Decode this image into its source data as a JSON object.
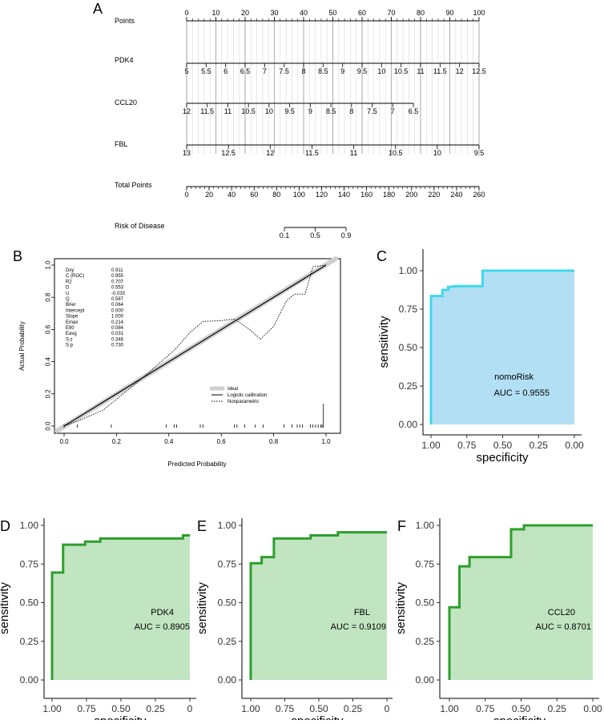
{
  "panels": {
    "nomogram": {
      "letter": "A",
      "rows": [
        {
          "label": "Points",
          "ticks": [
            "0",
            "10",
            "20",
            "30",
            "40",
            "50",
            "60",
            "70",
            "80",
            "90",
            "100"
          ]
        },
        {
          "label": "PDK4",
          "ticks": [
            "5",
            "5.5",
            "6",
            "6.5",
            "7",
            "7.5",
            "8",
            "8.5",
            "9",
            "9.5",
            "10",
            "10.5",
            "11",
            "11.5",
            "12",
            "12.5"
          ]
        },
        {
          "label": "CCL20",
          "ticks": [
            "12",
            "11.5",
            "11",
            "10.5",
            "10",
            "9.5",
            "9",
            "8.5",
            "8",
            "7.5",
            "7",
            "6.5"
          ]
        },
        {
          "label": "FBL",
          "ticks": [
            "13",
            "12.5",
            "12",
            "11.5",
            "11",
            "10.5",
            "10",
            "9.5"
          ]
        },
        {
          "label": "Total Points",
          "ticks": [
            "0",
            "20",
            "40",
            "60",
            "80",
            "100",
            "120",
            "140",
            "160",
            "180",
            "200",
            "220",
            "240",
            "260"
          ]
        },
        {
          "label": "Risk of Disease",
          "ticks": [
            "0.1",
            "0.5",
            "0.9"
          ]
        }
      ]
    },
    "calibration": {
      "letter": "B",
      "xlabel": "Predicted Probability",
      "ylabel": "Actual Probability",
      "xticks": [
        "0.0",
        "0.2",
        "0.4",
        "0.6",
        "0.8",
        "1.0"
      ],
      "yticks": [
        "0.0",
        "0.2",
        "0.4",
        "0.6",
        "0.8",
        "1.0"
      ],
      "stats": [
        {
          "name": "Dxy",
          "value": "0.911"
        },
        {
          "name": "C (ROC)",
          "value": "0.955"
        },
        {
          "name": "R2",
          "value": "0.707"
        },
        {
          "name": "D",
          "value": "0.553"
        },
        {
          "name": "U",
          "value": "-0.033"
        },
        {
          "name": "Q",
          "value": "0.587"
        },
        {
          "name": "Brier",
          "value": "0.064"
        },
        {
          "name": "Intercept",
          "value": "0.000"
        },
        {
          "name": "Slope",
          "value": "1.000"
        },
        {
          "name": "Emax",
          "value": "0.214"
        },
        {
          "name": "E90",
          "value": "0.084"
        },
        {
          "name": "Eavg",
          "value": "0.031"
        },
        {
          "name": "S:z",
          "value": "0.346"
        },
        {
          "name": "S:p",
          "value": "0.730"
        }
      ],
      "legend": [
        "Ideal",
        "Logistic calibration",
        "Nonparametric"
      ]
    },
    "roc_letters": [
      "C",
      "D",
      "E",
      "F"
    ]
  },
  "chart_data": [
    {
      "type": "line",
      "panel": "B",
      "xlim": [
        0,
        1
      ],
      "ylim": [
        0,
        1
      ],
      "series": [
        {
          "name": "Ideal",
          "x": [
            0,
            1
          ],
          "y": [
            0,
            1
          ]
        },
        {
          "name": "Logistic calibration",
          "x": [
            0,
            1
          ],
          "y": [
            0,
            1
          ]
        },
        {
          "name": "Nonparametric",
          "x": [
            0.0,
            0.05,
            0.15,
            0.3,
            0.42,
            0.48,
            0.53,
            0.6,
            0.65,
            0.7,
            0.75,
            0.8,
            0.85,
            0.88,
            0.92,
            0.95,
            1.0
          ],
          "y": [
            0.0,
            0.03,
            0.1,
            0.3,
            0.47,
            0.58,
            0.65,
            0.655,
            0.665,
            0.61,
            0.54,
            0.62,
            0.78,
            0.82,
            0.82,
            0.99,
            1.0
          ]
        }
      ],
      "rug": [
        0.0,
        0.05,
        0.18,
        0.39,
        0.42,
        0.43,
        0.52,
        0.53,
        0.65,
        0.66,
        0.69,
        0.73,
        0.76,
        0.84,
        0.87,
        0.89,
        0.9,
        0.91,
        0.94,
        0.95,
        0.96,
        0.97,
        0.98,
        0.985,
        0.99
      ]
    },
    {
      "type": "area",
      "panel": "C",
      "title": "nomoRisk",
      "annotation": "AUC = 0.9555",
      "xlabel": "specificity",
      "ylabel": "sensitivity",
      "xlim": [
        1,
        0
      ],
      "ylim": [
        0,
        1
      ],
      "xticks": [
        "1.00",
        "0.75",
        "0.50",
        "0.25",
        "0.00"
      ],
      "yticks": [
        "0.00",
        "0.25",
        "0.50",
        "0.75",
        "1.00"
      ],
      "color": "#3fd8e8",
      "fill": "#b3dff5",
      "specificity": [
        1.0,
        1.0,
        0.92,
        0.92,
        0.88,
        0.88,
        0.84,
        0.84,
        0.64,
        0.64,
        0.0
      ],
      "sensitivity": [
        0.0,
        0.835,
        0.835,
        0.875,
        0.875,
        0.895,
        0.895,
        0.9,
        0.9,
        1.0,
        1.0
      ]
    },
    {
      "type": "area",
      "panel": "D",
      "title": "PDK4",
      "annotation": "AUC = 0.8905",
      "xlabel": "specificity",
      "ylabel": "sensitivity",
      "xlim": [
        1,
        0
      ],
      "ylim": [
        0,
        1
      ],
      "xticks": [
        "1.00",
        "0.75",
        "0.50",
        "0.25",
        "0"
      ],
      "yticks": [
        "0.00",
        "0.25",
        "0.50",
        "0.75",
        "1.00"
      ],
      "color": "#2e9e2e",
      "fill": "#c1e4c1",
      "specificity": [
        1.0,
        1.0,
        0.92,
        0.92,
        0.76,
        0.76,
        0.65,
        0.65,
        0.05,
        0.05,
        0.0
      ],
      "sensitivity": [
        0.0,
        0.695,
        0.695,
        0.875,
        0.875,
        0.895,
        0.895,
        0.915,
        0.915,
        0.935,
        0.935
      ]
    },
    {
      "type": "area",
      "panel": "E",
      "title": "FBL",
      "annotation": "AUC = 0.9109",
      "xlabel": "specificity",
      "ylabel": "sensitivity",
      "xlim": [
        1,
        0
      ],
      "ylim": [
        0,
        1
      ],
      "xticks": [
        "1.00",
        "0.75",
        "0.50",
        "0.25",
        "0"
      ],
      "yticks": [
        "0.00",
        "0.25",
        "0.50",
        "0.75",
        "1.00"
      ],
      "color": "#2e9e2e",
      "fill": "#c1e4c1",
      "specificity": [
        1.0,
        1.0,
        0.92,
        0.92,
        0.83,
        0.83,
        0.56,
        0.56,
        0.36,
        0.36,
        0.0
      ],
      "sensitivity": [
        0.0,
        0.755,
        0.755,
        0.795,
        0.795,
        0.915,
        0.915,
        0.935,
        0.935,
        0.955,
        0.955
      ]
    },
    {
      "type": "area",
      "panel": "F",
      "title": "CCL20",
      "annotation": "AUC = 0.8701",
      "xlabel": "specificity",
      "ylabel": "sensitivity",
      "xlim": [
        1,
        0
      ],
      "ylim": [
        0,
        1
      ],
      "xticks": [
        "1.00",
        "0.75",
        "0.50",
        "0.25",
        "0.00"
      ],
      "yticks": [
        "0.00",
        "0.25",
        "0.50",
        "0.75",
        "1.00"
      ],
      "color": "#2e9e2e",
      "fill": "#c1e4c1",
      "specificity": [
        1.0,
        1.0,
        0.93,
        0.93,
        0.86,
        0.86,
        0.57,
        0.57,
        0.48,
        0.48,
        0.0
      ],
      "sensitivity": [
        0.0,
        0.47,
        0.47,
        0.735,
        0.735,
        0.795,
        0.795,
        0.975,
        0.975,
        1.0,
        1.0
      ]
    }
  ]
}
